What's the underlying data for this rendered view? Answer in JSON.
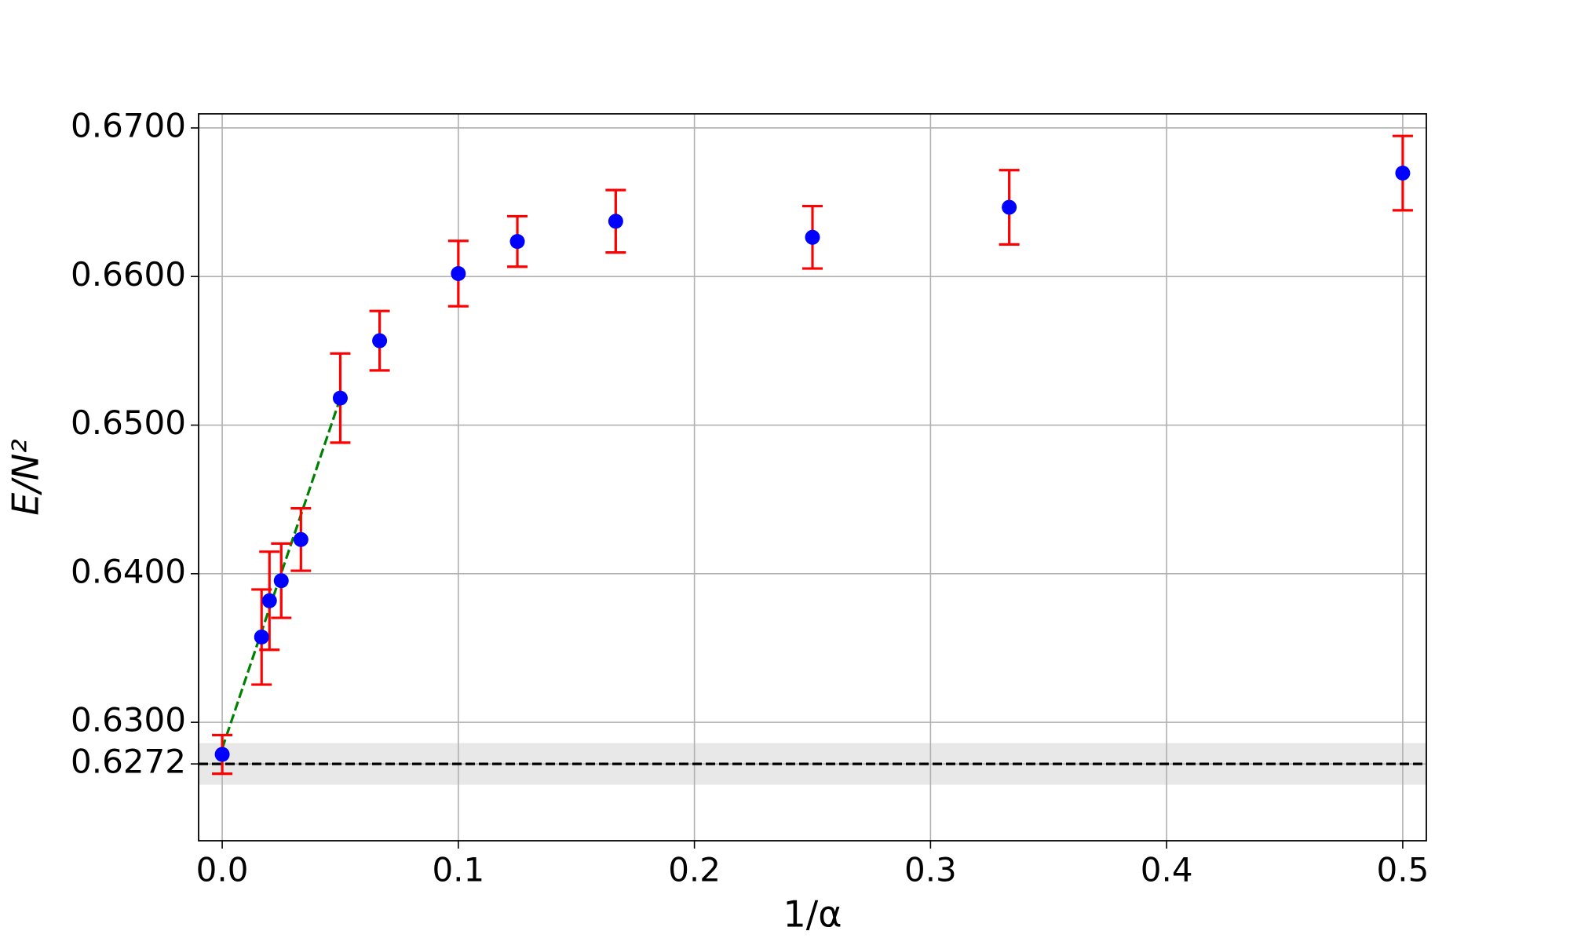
{
  "chart_data": {
    "type": "scatter",
    "xlabel": "1/α",
    "ylabel": "E/N²",
    "x": [
      0,
      0.01667,
      0.02,
      0.025,
      0.03333,
      0.05,
      0.06667,
      0.1,
      0.125,
      0.16667,
      0.25,
      0.33333,
      0.5
    ],
    "series": [
      {
        "color": "#0000ff",
        "error_color": "#ff0000",
        "values": [
          0.62784,
          0.63574,
          0.63818,
          0.63953,
          0.6423,
          0.65182,
          0.65568,
          0.6602,
          0.66236,
          0.66372,
          0.66264,
          0.66466,
          0.66696
        ],
        "errors": [
          0.0013,
          0.0032,
          0.0033,
          0.0025,
          0.0021,
          0.003,
          0.002,
          0.0022,
          0.0017,
          0.0021,
          0.0021,
          0.0025,
          0.0025
        ]
      }
    ],
    "fit": {
      "x": [
        0,
        0.05
      ],
      "values": [
        0.62824,
        0.65182
      ],
      "color": "#008000"
    },
    "reference": {
      "value": 0.6272,
      "band": 0.0014,
      "color": "#000000",
      "band_color": "#e8e8e8"
    },
    "xlim": [
      -0.01,
      0.51
    ],
    "ylim": [
      0.62203,
      0.67095
    ],
    "xticks": [
      {
        "value": 0,
        "label": "0.0"
      },
      0.1,
      0.2,
      0.3,
      0.4,
      0.5
    ],
    "yticks": [
      {
        "value": 0.6272,
        "label": "0.6272"
      },
      {
        "value": 0.63,
        "label": "0.6300"
      },
      {
        "value": 0.64,
        "label": "0.6400"
      },
      {
        "value": 0.65,
        "label": "0.6500"
      },
      {
        "value": 0.66,
        "label": "0.6600"
      },
      {
        "value": 0.67,
        "label": "0.6700"
      }
    ],
    "grid": true
  }
}
